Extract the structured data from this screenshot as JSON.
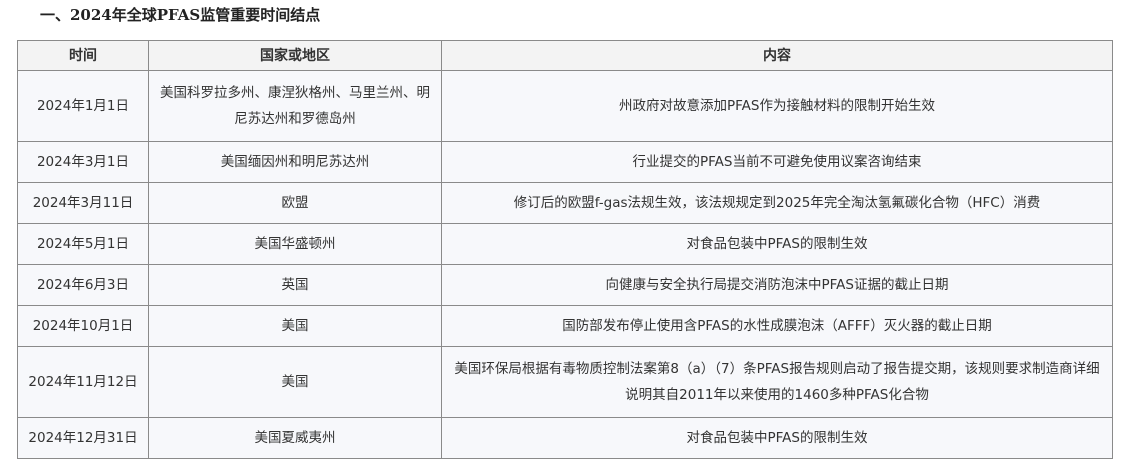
{
  "title": "一、2024年全球PFAS监管重要时间结点",
  "table": {
    "headers": [
      "时间",
      "国家或地区",
      "内容"
    ],
    "rows": [
      {
        "date": "2024年1月1日",
        "region": "美国科罗拉多州、康涅狄格州、马里兰州、明尼苏达州和罗德岛州",
        "content": "州政府对故意添加PFAS作为接触材料的限制开始生效"
      },
      {
        "date": "2024年3月1日",
        "region": "美国缅因州和明尼苏达州",
        "content": "行业提交的PFAS当前不可避免使用议案咨询结束"
      },
      {
        "date": "2024年3月11日",
        "region": "欧盟",
        "content": "修订后的欧盟f-gas法规生效，该法规规定到2025年完全淘汰氢氟碳化合物（HFC）消费"
      },
      {
        "date": "2024年5月1日",
        "region": "美国华盛顿州",
        "content": "对食品包装中PFAS的限制生效"
      },
      {
        "date": "2024年6月3日",
        "region": "英国",
        "content": "向健康与安全执行局提交消防泡沫中PFAS证据的截止日期"
      },
      {
        "date": "2024年10月1日",
        "region": "美国",
        "content": "国防部发布停止使用含PFAS的水性成膜泡沫（AFFF）灭火器的截止日期"
      },
      {
        "date": "2024年11月12日",
        "region": "美国",
        "content": "美国环保局根据有毒物质控制法案第8（a）（7）条PFAS报告规则启动了报告提交期，该规则要求制造商详细说明其自2011年以来使用的1460多种PFAS化合物"
      },
      {
        "date": "2024年12月31日",
        "region": "美国夏威夷州",
        "content": "对食品包装中PFAS的限制生效"
      }
    ]
  }
}
